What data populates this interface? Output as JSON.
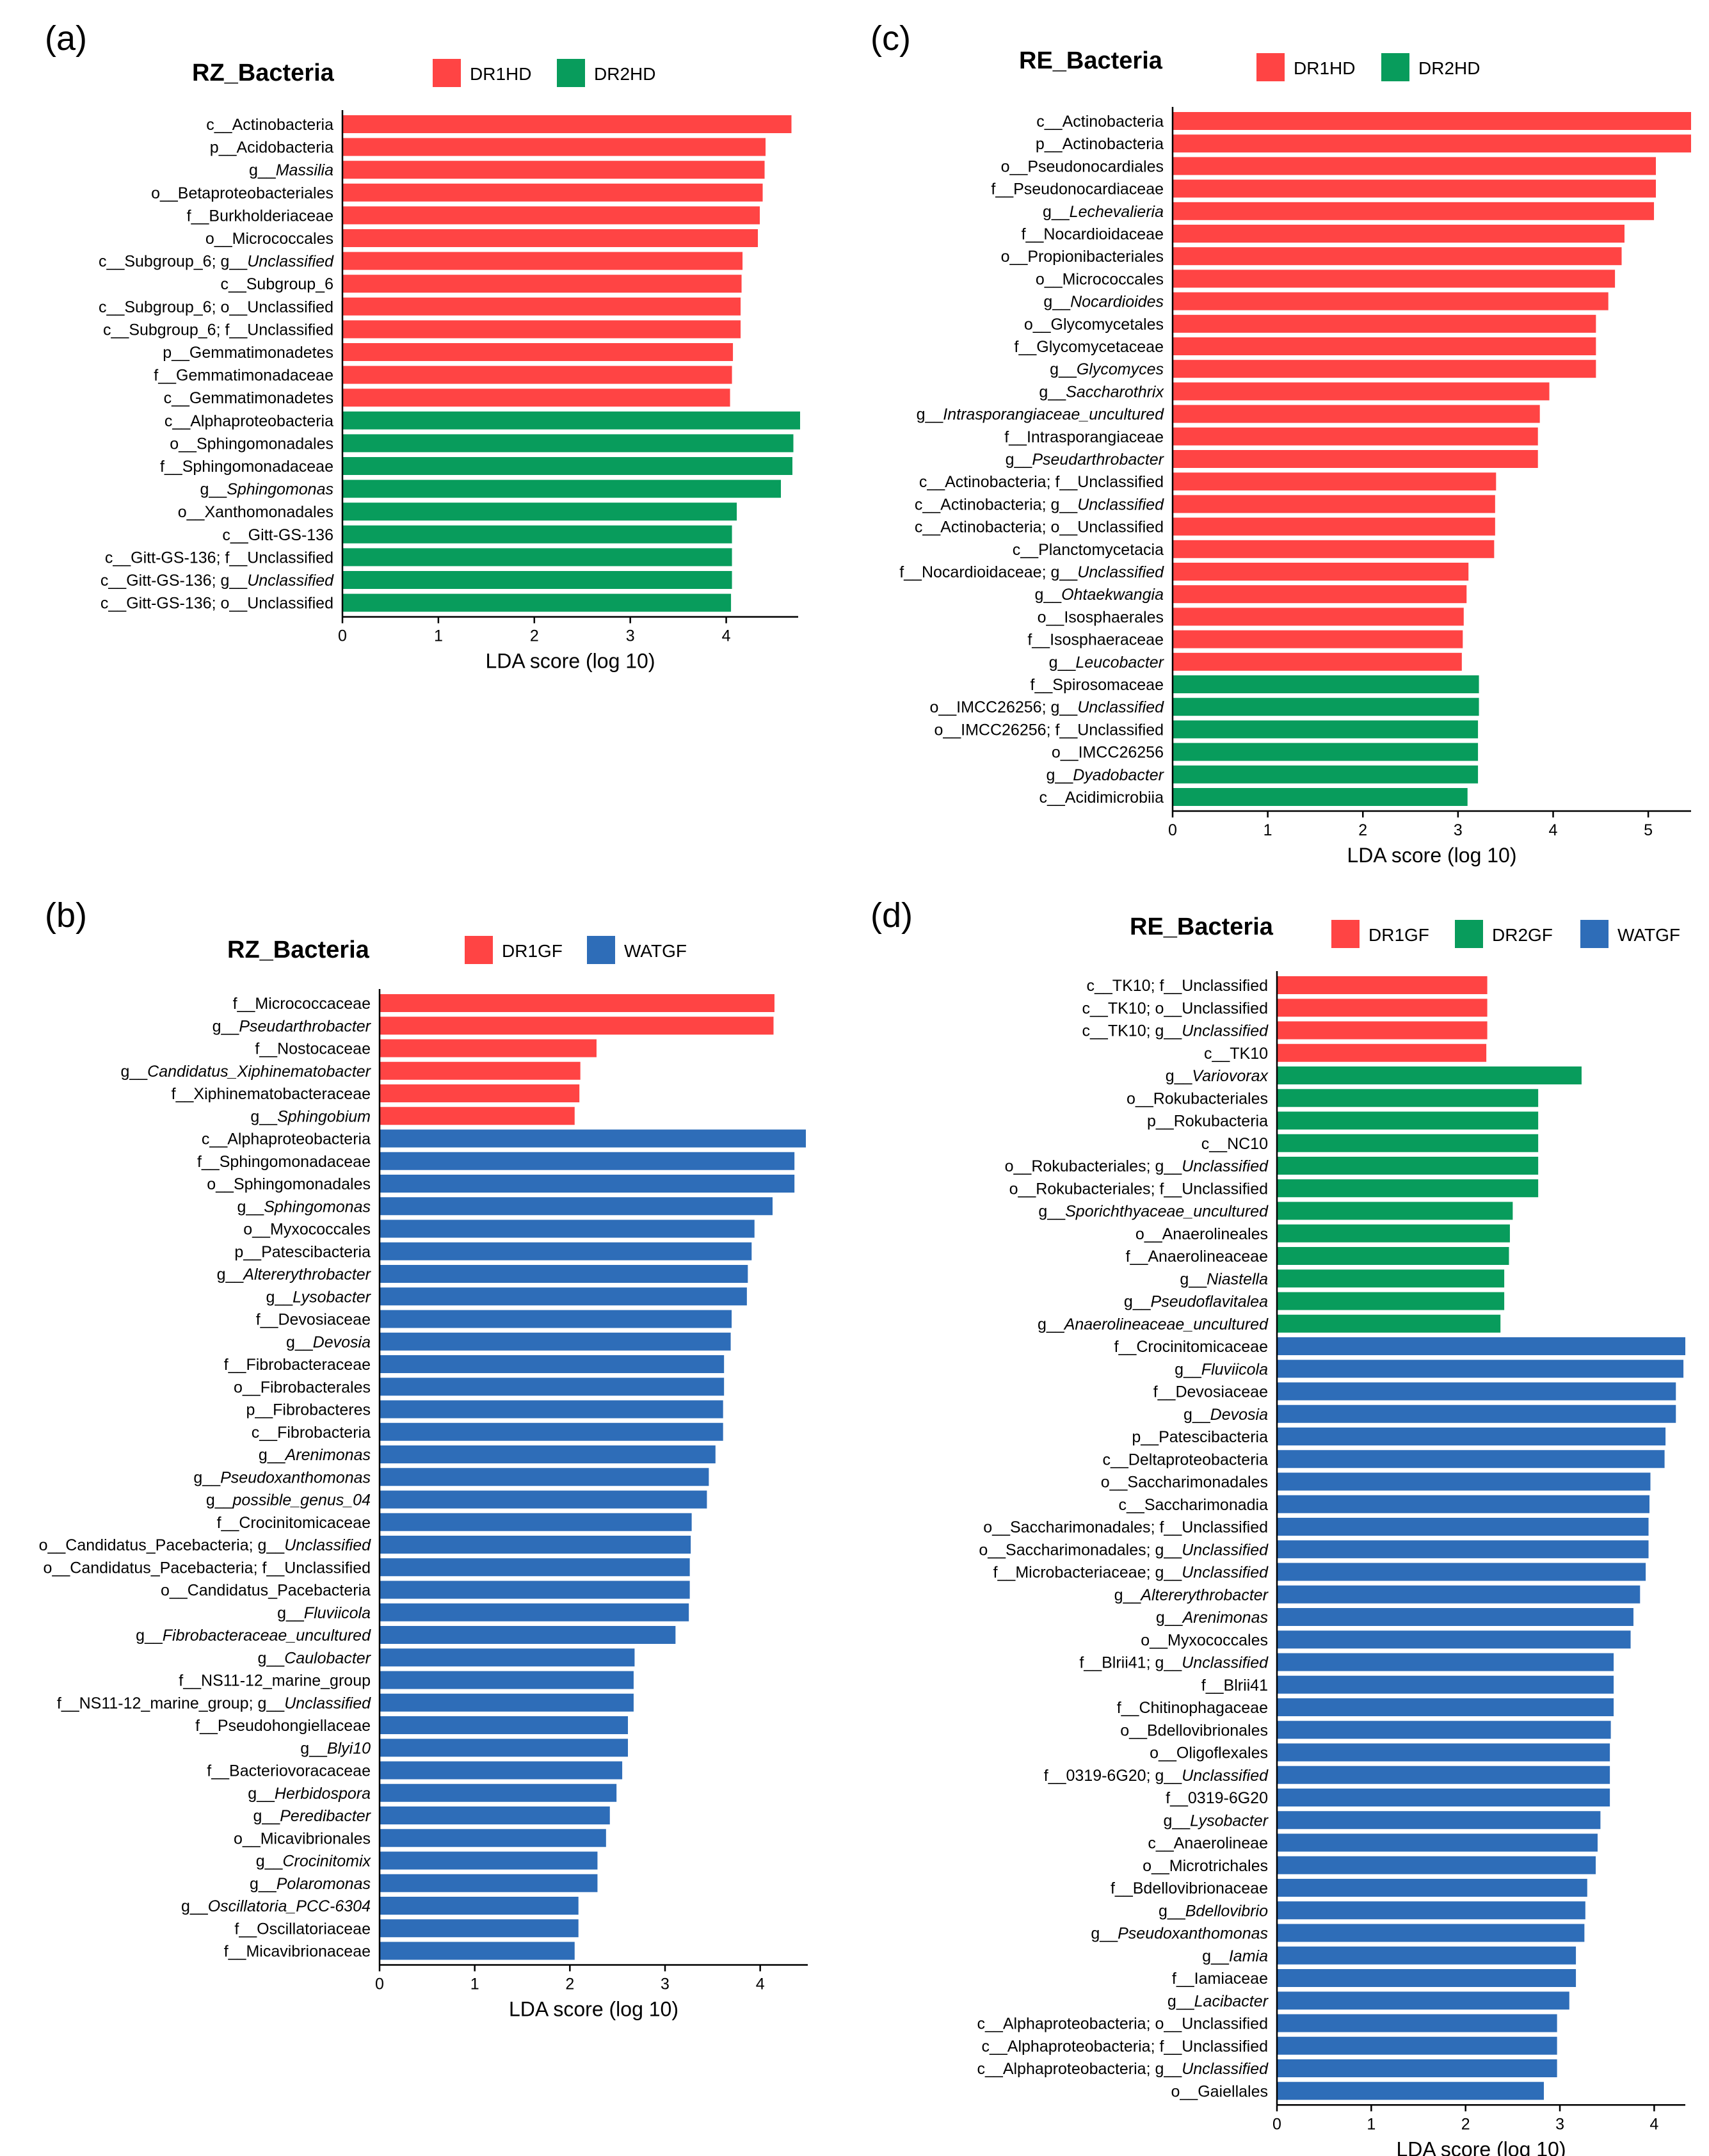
{
  "colors": {
    "DR1HD": "#FF4444",
    "DR2HD": "#089C5C",
    "DR1GF": "#FF4444",
    "DR2GF": "#089C5C",
    "WATGF": "#2E6DB8"
  },
  "chart_data": [
    {
      "panel": "(a)",
      "title": "RZ_Bacteria",
      "type": "bar",
      "orientation": "horizontal",
      "xlabel": "LDA score (log 10)",
      "xlim": [
        0,
        4.75
      ],
      "xticks": [
        0,
        1,
        2,
        3,
        4
      ],
      "legend": [
        "DR1HD",
        "DR2HD"
      ],
      "bars": [
        {
          "label": "c__Actinobacteria",
          "value": 4.68,
          "group": "DR1HD"
        },
        {
          "label": "p__Acidobacteria",
          "value": 4.41,
          "group": "DR1HD"
        },
        {
          "label": "g__Massilia",
          "value": 4.4,
          "group": "DR1HD"
        },
        {
          "label": "o__Betaproteobacteriales",
          "value": 4.38,
          "group": "DR1HD"
        },
        {
          "label": "f__Burkholderiaceae",
          "value": 4.35,
          "group": "DR1HD"
        },
        {
          "label": "o__Micrococcales",
          "value": 4.33,
          "group": "DR1HD"
        },
        {
          "label": "c__Subgroup_6; g__Unclassified",
          "value": 4.17,
          "group": "DR1HD"
        },
        {
          "label": "c__Subgroup_6",
          "value": 4.16,
          "group": "DR1HD"
        },
        {
          "label": "c__Subgroup_6; o__Unclassified",
          "value": 4.15,
          "group": "DR1HD"
        },
        {
          "label": "c__Subgroup_6; f__Unclassified",
          "value": 4.15,
          "group": "DR1HD"
        },
        {
          "label": "p__Gemmatimonadetes",
          "value": 4.07,
          "group": "DR1HD"
        },
        {
          "label": "f__Gemmatimonadaceae",
          "value": 4.06,
          "group": "DR1HD"
        },
        {
          "label": "c__Gemmatimonadetes",
          "value": 4.04,
          "group": "DR1HD"
        },
        {
          "label": "c__Alphaproteobacteria",
          "value": 4.77,
          "group": "DR2HD"
        },
        {
          "label": "o__Sphingomonadales",
          "value": 4.7,
          "group": "DR2HD"
        },
        {
          "label": "f__Sphingomonadaceae",
          "value": 4.69,
          "group": "DR2HD"
        },
        {
          "label": "g__Sphingomonas",
          "value": 4.57,
          "group": "DR2HD"
        },
        {
          "label": "o__Xanthomonadales",
          "value": 4.11,
          "group": "DR2HD"
        },
        {
          "label": "c__Gitt-GS-136",
          "value": 4.06,
          "group": "DR2HD"
        },
        {
          "label": "c__Gitt-GS-136; f__Unclassified",
          "value": 4.06,
          "group": "DR2HD"
        },
        {
          "label": "c__Gitt-GS-136; g__Unclassified",
          "value": 4.06,
          "group": "DR2HD"
        },
        {
          "label": "c__Gitt-GS-136; o__Unclassified",
          "value": 4.05,
          "group": "DR2HD"
        }
      ]
    },
    {
      "panel": "(b)",
      "title": "RZ_Bacteria",
      "type": "bar",
      "orientation": "horizontal",
      "xlabel": "LDA score (log 10)",
      "xlim": [
        0,
        4.5
      ],
      "xticks": [
        0,
        1,
        2,
        3,
        4
      ],
      "legend": [
        "DR1GF",
        "WATGF"
      ],
      "bars": [
        {
          "label": "f__Micrococcaceae",
          "value": 4.15,
          "group": "DR1GF"
        },
        {
          "label": "g__Pseudarthrobacter",
          "value": 4.14,
          "group": "DR1GF"
        },
        {
          "label": "f__Nostocaceae",
          "value": 2.28,
          "group": "DR1GF"
        },
        {
          "label": "g__Candidatus_Xiphinematobacter",
          "value": 2.11,
          "group": "DR1GF"
        },
        {
          "label": "f__Xiphinematobacteraceae",
          "value": 2.1,
          "group": "DR1GF"
        },
        {
          "label": "g__Sphingobium",
          "value": 2.05,
          "group": "DR1GF"
        },
        {
          "label": "c__Alphaproteobacteria",
          "value": 4.48,
          "group": "WATGF"
        },
        {
          "label": "f__Sphingomonadaceae",
          "value": 4.36,
          "group": "WATGF"
        },
        {
          "label": "o__Sphingomonadales",
          "value": 4.36,
          "group": "WATGF"
        },
        {
          "label": "g__Sphingomonas",
          "value": 4.13,
          "group": "WATGF"
        },
        {
          "label": "o__Myxococcales",
          "value": 3.94,
          "group": "WATGF"
        },
        {
          "label": "p__Patescibacteria",
          "value": 3.91,
          "group": "WATGF"
        },
        {
          "label": "g__Altererythrobacter",
          "value": 3.87,
          "group": "WATGF"
        },
        {
          "label": "g__Lysobacter",
          "value": 3.86,
          "group": "WATGF"
        },
        {
          "label": "f__Devosiaceae",
          "value": 3.7,
          "group": "WATGF"
        },
        {
          "label": "g__Devosia",
          "value": 3.69,
          "group": "WATGF"
        },
        {
          "label": "f__Fibrobacteraceae",
          "value": 3.62,
          "group": "WATGF"
        },
        {
          "label": "o__Fibrobacterales",
          "value": 3.62,
          "group": "WATGF"
        },
        {
          "label": "p__Fibrobacteres",
          "value": 3.61,
          "group": "WATGF"
        },
        {
          "label": "c__Fibrobacteria",
          "value": 3.61,
          "group": "WATGF"
        },
        {
          "label": "g__Arenimonas",
          "value": 3.53,
          "group": "WATGF"
        },
        {
          "label": "g__Pseudoxanthomonas",
          "value": 3.46,
          "group": "WATGF"
        },
        {
          "label": "g__possible_genus_04",
          "value": 3.44,
          "group": "WATGF"
        },
        {
          "label": "f__Crocinitomicaceae",
          "value": 3.28,
          "group": "WATGF"
        },
        {
          "label": "o__Candidatus_Pacebacteria; g__Unclassified",
          "value": 3.27,
          "group": "WATGF"
        },
        {
          "label": "o__Candidatus_Pacebacteria; f__Unclassified",
          "value": 3.26,
          "group": "WATGF"
        },
        {
          "label": "o__Candidatus_Pacebacteria",
          "value": 3.26,
          "group": "WATGF"
        },
        {
          "label": "g__Fluviicola",
          "value": 3.25,
          "group": "WATGF"
        },
        {
          "label": "g__Fibrobacteraceae_uncultured",
          "value": 3.11,
          "group": "WATGF"
        },
        {
          "label": "g__Caulobacter",
          "value": 2.68,
          "group": "WATGF"
        },
        {
          "label": "f__NS11-12_marine_group",
          "value": 2.67,
          "group": "WATGF"
        },
        {
          "label": "f__NS11-12_marine_group; g__Unclassified",
          "value": 2.67,
          "group": "WATGF"
        },
        {
          "label": "f__Pseudohongiellaceae",
          "value": 2.61,
          "group": "WATGF"
        },
        {
          "label": "g__Blyi10",
          "value": 2.61,
          "group": "WATGF"
        },
        {
          "label": "f__Bacteriovoracaceae",
          "value": 2.55,
          "group": "WATGF"
        },
        {
          "label": "g__Herbidospora",
          "value": 2.49,
          "group": "WATGF"
        },
        {
          "label": "g__Peredibacter",
          "value": 2.42,
          "group": "WATGF"
        },
        {
          "label": "o__Micavibrionales",
          "value": 2.38,
          "group": "WATGF"
        },
        {
          "label": "g__Crocinitomix",
          "value": 2.29,
          "group": "WATGF"
        },
        {
          "label": "g__Polaromonas",
          "value": 2.29,
          "group": "WATGF"
        },
        {
          "label": "g__Oscillatoria_PCC-6304",
          "value": 2.09,
          "group": "WATGF"
        },
        {
          "label": "f__Oscillatoriaceae",
          "value": 2.09,
          "group": "WATGF"
        },
        {
          "label": "f__Micavibrionaceae",
          "value": 2.05,
          "group": "WATGF"
        }
      ]
    },
    {
      "panel": "(c)",
      "title": "RE_Bacteria",
      "type": "bar",
      "orientation": "horizontal",
      "xlabel": "LDA score (log 10)",
      "xlim": [
        0,
        5.45
      ],
      "xticks": [
        0,
        1,
        2,
        3,
        4,
        5
      ],
      "legend": [
        "DR1HD",
        "DR2HD"
      ],
      "bars": [
        {
          "label": "c__Actinobacteria",
          "value": 5.45,
          "group": "DR1HD"
        },
        {
          "label": "p__Actinobacteria",
          "value": 5.45,
          "group": "DR1HD"
        },
        {
          "label": "o__Pseudonocardiales",
          "value": 5.08,
          "group": "DR1HD"
        },
        {
          "label": "f__Pseudonocardiaceae",
          "value": 5.08,
          "group": "DR1HD"
        },
        {
          "label": "g__Lechevalieria",
          "value": 5.06,
          "group": "DR1HD"
        },
        {
          "label": "f__Nocardioidaceae",
          "value": 4.75,
          "group": "DR1HD"
        },
        {
          "label": "o__Propionibacteriales",
          "value": 4.72,
          "group": "DR1HD"
        },
        {
          "label": "o__Micrococcales",
          "value": 4.65,
          "group": "DR1HD"
        },
        {
          "label": "g__Nocardioides",
          "value": 4.58,
          "group": "DR1HD"
        },
        {
          "label": "o__Glycomycetales",
          "value": 4.45,
          "group": "DR1HD"
        },
        {
          "label": "f__Glycomycetaceae",
          "value": 4.45,
          "group": "DR1HD"
        },
        {
          "label": "g__Glycomyces",
          "value": 4.45,
          "group": "DR1HD"
        },
        {
          "label": "g__Saccharothrix",
          "value": 3.96,
          "group": "DR1HD"
        },
        {
          "label": "g__Intrasporangiaceae_uncultured",
          "value": 3.86,
          "group": "DR1HD"
        },
        {
          "label": "f__Intrasporangiaceae",
          "value": 3.84,
          "group": "DR1HD"
        },
        {
          "label": "g__Pseudarthrobacter",
          "value": 3.84,
          "group": "DR1HD"
        },
        {
          "label": "c__Actinobacteria; f__Unclassified",
          "value": 3.4,
          "group": "DR1HD"
        },
        {
          "label": "c__Actinobacteria; g__Unclassified",
          "value": 3.39,
          "group": "DR1HD"
        },
        {
          "label": "c__Actinobacteria; o__Unclassified",
          "value": 3.39,
          "group": "DR1HD"
        },
        {
          "label": "c__Planctomycetacia",
          "value": 3.38,
          "group": "DR1HD"
        },
        {
          "label": "f__Nocardioidaceae; g__Unclassified",
          "value": 3.11,
          "group": "DR1HD"
        },
        {
          "label": "g__Ohtaekwangia",
          "value": 3.09,
          "group": "DR1HD"
        },
        {
          "label": "o__Isosphaerales",
          "value": 3.06,
          "group": "DR1HD"
        },
        {
          "label": "f__Isosphaeraceae",
          "value": 3.05,
          "group": "DR1HD"
        },
        {
          "label": "g__Leucobacter",
          "value": 3.04,
          "group": "DR1HD"
        },
        {
          "label": "f__Spirosomaceae",
          "value": 3.22,
          "group": "DR2HD"
        },
        {
          "label": "o__IMCC26256; g__Unclassified",
          "value": 3.22,
          "group": "DR2HD"
        },
        {
          "label": "o__IMCC26256; f__Unclassified",
          "value": 3.21,
          "group": "DR2HD"
        },
        {
          "label": "o__IMCC26256",
          "value": 3.21,
          "group": "DR2HD"
        },
        {
          "label": "g__Dyadobacter",
          "value": 3.21,
          "group": "DR2HD"
        },
        {
          "label": "c__Acidimicrobiia",
          "value": 3.1,
          "group": "DR2HD"
        }
      ]
    },
    {
      "panel": "(d)",
      "title": "RE_Bacteria",
      "type": "bar",
      "orientation": "horizontal",
      "xlabel": "LDA score (log 10)",
      "xlim": [
        0,
        4.33
      ],
      "xticks": [
        0,
        1,
        2,
        3,
        4
      ],
      "legend": [
        "DR1GF",
        "DR2GF",
        "WATGF"
      ],
      "bars": [
        {
          "label": "c__TK10; f__Unclassified",
          "value": 2.23,
          "group": "DR1GF"
        },
        {
          "label": "c__TK10; o__Unclassified",
          "value": 2.23,
          "group": "DR1GF"
        },
        {
          "label": "c__TK10; g__Unclassified",
          "value": 2.23,
          "group": "DR1GF"
        },
        {
          "label": "c__TK10",
          "value": 2.22,
          "group": "DR1GF"
        },
        {
          "label": "g__Variovorax",
          "value": 3.23,
          "group": "DR2GF"
        },
        {
          "label": "o__Rokubacteriales",
          "value": 2.77,
          "group": "DR2GF"
        },
        {
          "label": "p__Rokubacteria",
          "value": 2.77,
          "group": "DR2GF"
        },
        {
          "label": "c__NC10",
          "value": 2.77,
          "group": "DR2GF"
        },
        {
          "label": "o__Rokubacteriales; g__Unclassified",
          "value": 2.77,
          "group": "DR2GF"
        },
        {
          "label": "o__Rokubacteriales; f__Unclassified",
          "value": 2.77,
          "group": "DR2GF"
        },
        {
          "label": "g__Sporichthyaceae_uncultured",
          "value": 2.5,
          "group": "DR2GF"
        },
        {
          "label": "o__Anaerolineales",
          "value": 2.47,
          "group": "DR2GF"
        },
        {
          "label": "f__Anaerolineaceae",
          "value": 2.46,
          "group": "DR2GF"
        },
        {
          "label": "g__Niastella",
          "value": 2.41,
          "group": "DR2GF"
        },
        {
          "label": "g__Pseudoflavitalea",
          "value": 2.41,
          "group": "DR2GF"
        },
        {
          "label": "g__Anaerolineaceae_uncultured",
          "value": 2.37,
          "group": "DR2GF"
        },
        {
          "label": "f__Crocinitomicaceae",
          "value": 4.33,
          "group": "WATGF"
        },
        {
          "label": "g__Fluviicola",
          "value": 4.31,
          "group": "WATGF"
        },
        {
          "label": "f__Devosiaceae",
          "value": 4.23,
          "group": "WATGF"
        },
        {
          "label": "g__Devosia",
          "value": 4.23,
          "group": "WATGF"
        },
        {
          "label": "p__Patescibacteria",
          "value": 4.12,
          "group": "WATGF"
        },
        {
          "label": "c__Deltaproteobacteria",
          "value": 4.11,
          "group": "WATGF"
        },
        {
          "label": "o__Saccharimonadales",
          "value": 3.96,
          "group": "WATGF"
        },
        {
          "label": "c__Saccharimonadia",
          "value": 3.95,
          "group": "WATGF"
        },
        {
          "label": "o__Saccharimonadales; f__Unclassified",
          "value": 3.94,
          "group": "WATGF"
        },
        {
          "label": "o__Saccharimonadales; g__Unclassified",
          "value": 3.94,
          "group": "WATGF"
        },
        {
          "label": "f__Microbacteriaceae; g__Unclassified",
          "value": 3.91,
          "group": "WATGF"
        },
        {
          "label": "g__Altererythrobacter",
          "value": 3.85,
          "group": "WATGF"
        },
        {
          "label": "g__Arenimonas",
          "value": 3.78,
          "group": "WATGF"
        },
        {
          "label": "o__Myxococcales",
          "value": 3.75,
          "group": "WATGF"
        },
        {
          "label": "f__Blrii41; g__Unclassified",
          "value": 3.57,
          "group": "WATGF"
        },
        {
          "label": "f__Blrii41",
          "value": 3.57,
          "group": "WATGF"
        },
        {
          "label": "f__Chitinophagaceae",
          "value": 3.57,
          "group": "WATGF"
        },
        {
          "label": "o__Bdellovibrionales",
          "value": 3.54,
          "group": "WATGF"
        },
        {
          "label": "o__Oligoflexales",
          "value": 3.53,
          "group": "WATGF"
        },
        {
          "label": "f__0319-6G20; g__Unclassified",
          "value": 3.53,
          "group": "WATGF"
        },
        {
          "label": "f__0319-6G20",
          "value": 3.53,
          "group": "WATGF"
        },
        {
          "label": "g__Lysobacter",
          "value": 3.43,
          "group": "WATGF"
        },
        {
          "label": "c__Anaerolineae",
          "value": 3.4,
          "group": "WATGF"
        },
        {
          "label": "o__Microtrichales",
          "value": 3.38,
          "group": "WATGF"
        },
        {
          "label": "f__Bdellovibrionaceae",
          "value": 3.29,
          "group": "WATGF"
        },
        {
          "label": "g__Bdellovibrio",
          "value": 3.27,
          "group": "WATGF"
        },
        {
          "label": "g__Pseudoxanthomonas",
          "value": 3.26,
          "group": "WATGF"
        },
        {
          "label": "g__Iamia",
          "value": 3.17,
          "group": "WATGF"
        },
        {
          "label": "f__Iamiaceae",
          "value": 3.17,
          "group": "WATGF"
        },
        {
          "label": "g__Lacibacter",
          "value": 3.1,
          "group": "WATGF"
        },
        {
          "label": "c__Alphaproteobacteria; o__Unclassified",
          "value": 2.97,
          "group": "WATGF"
        },
        {
          "label": "c__Alphaproteobacteria; f__Unclassified",
          "value": 2.97,
          "group": "WATGF"
        },
        {
          "label": "c__Alphaproteobacteria; g__Unclassified",
          "value": 2.97,
          "group": "WATGF"
        },
        {
          "label": "o__Gaiellales",
          "value": 2.83,
          "group": "WATGF"
        }
      ]
    }
  ]
}
